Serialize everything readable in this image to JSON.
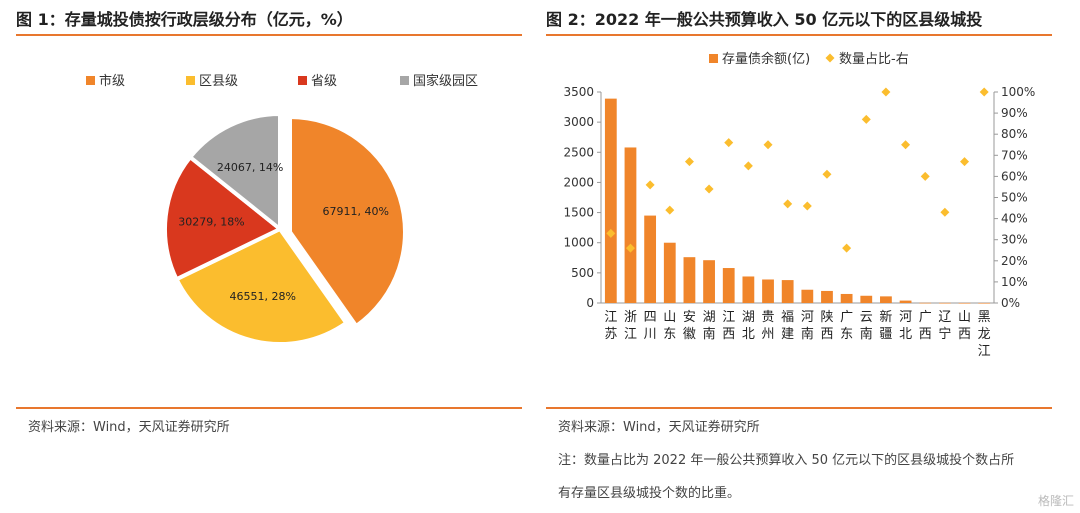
{
  "panel1": {
    "title": "图 1：存量城投债按行政层级分布（亿元，%）",
    "source": "资料来源：Wind，天风证券研究所"
  },
  "panel2": {
    "title": "图 2：2022 年一般公共预算收入 50 亿元以下的区县级城投",
    "source": "资料来源：Wind，天风证券研究所",
    "note_line1": "注：数量占比为 2022 年一般公共预算收入 50 亿元以下的区县级城投个数占所",
    "note_line2": "有存量区县级城投个数的比重。"
  },
  "watermark": "格隆汇",
  "chart_data": [
    {
      "type": "pie",
      "slices": [
        {
          "name": "市级",
          "value": 67911,
          "pct": 40,
          "label": "67911, 40%",
          "color": "#f0852a"
        },
        {
          "name": "区县级",
          "value": 46551,
          "pct": 28,
          "label": "46551, 28%",
          "color": "#fbbd2e"
        },
        {
          "name": "省级",
          "value": 30279,
          "pct": 18,
          "label": "30279, 18%",
          "color": "#d9381e"
        },
        {
          "name": "国家级园区",
          "value": 24067,
          "pct": 14,
          "label": "24067, 14%",
          "color": "#a6a6a6"
        }
      ],
      "legend_position": "top"
    },
    {
      "type": "bar",
      "categories": [
        "江苏",
        "浙江",
        "四川",
        "山东",
        "安徽",
        "湖南",
        "江西",
        "湖北",
        "贵州",
        "福建",
        "河南",
        "陕西",
        "广东",
        "云南",
        "新疆",
        "河北",
        "广西",
        "辽宁",
        "山西",
        "黑龙江"
      ],
      "series": [
        {
          "name": "存量债余额(亿)",
          "type": "bar",
          "axis": "left",
          "color": "#f0852a",
          "values": [
            3390,
            2580,
            1450,
            1000,
            760,
            710,
            580,
            440,
            390,
            380,
            220,
            200,
            150,
            120,
            110,
            40,
            3,
            2,
            1,
            1
          ]
        },
        {
          "name": "数量占比-右",
          "type": "scatter",
          "axis": "right",
          "color": "#fbbd2e",
          "values": [
            33,
            26,
            56,
            44,
            67,
            54,
            76,
            65,
            75,
            47,
            46,
            61,
            26,
            87,
            100,
            75,
            60,
            43,
            67,
            100
          ]
        }
      ],
      "ylim_left": [
        0,
        3500
      ],
      "yticks_left": [
        0,
        500,
        1000,
        1500,
        2000,
        2500,
        3000,
        3500
      ],
      "ylim_right": [
        0,
        100
      ],
      "yticks_right": [
        "0%",
        "10%",
        "20%",
        "30%",
        "40%",
        "50%",
        "60%",
        "70%",
        "80%",
        "90%",
        "100%"
      ],
      "legend_position": "top"
    }
  ]
}
